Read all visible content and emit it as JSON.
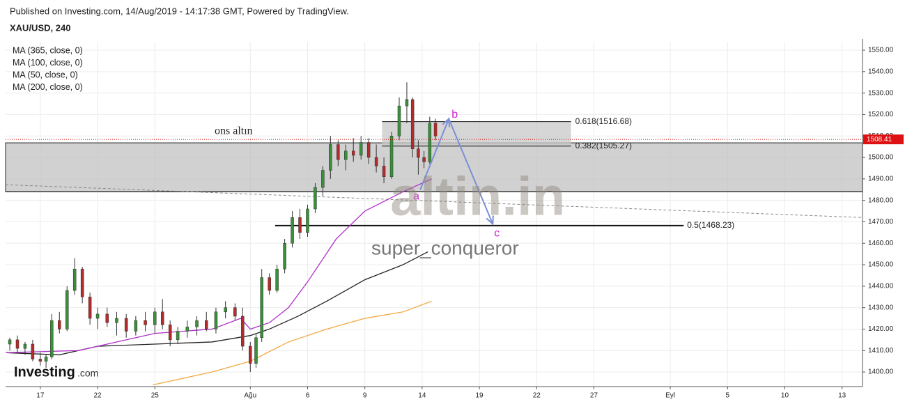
{
  "chart_data": {
    "type": "candlestick",
    "header": "Published on Investing.com, 14/Aug/2019 - 14:17:38 GMT, Powered by TradingView.",
    "title": "XAU/USD, 240",
    "brand": [
      "Investing",
      ".com"
    ],
    "annotations": [
      "ons altın",
      "altin.in",
      "super_conqueror"
    ],
    "ylim": [
      1393.2,
      1553.9
    ],
    "yticks": [
      {
        "value": 1400,
        "label": "1400.00"
      },
      {
        "value": 1410,
        "label": "1410.00"
      },
      {
        "value": 1420,
        "label": "1420.00"
      },
      {
        "value": 1430,
        "label": "1430.00"
      },
      {
        "value": 1440,
        "label": "1440.00"
      },
      {
        "value": 1450,
        "label": "1450.00"
      },
      {
        "value": 1460,
        "label": "1460.00"
      },
      {
        "value": 1470,
        "label": "1470.00"
      },
      {
        "value": 1480,
        "label": "1480.00"
      },
      {
        "value": 1490,
        "label": "1490.00"
      },
      {
        "value": 1500,
        "label": "1500.00"
      },
      {
        "value": 1510,
        "label": "1510.00"
      },
      {
        "value": 1520,
        "label": "1520.00"
      },
      {
        "value": 1530,
        "label": "1530.00"
      },
      {
        "value": 1540,
        "label": "1540.00"
      },
      {
        "value": 1550,
        "label": "1550.00"
      }
    ],
    "xlim": [
      -1.82,
      43.07
    ],
    "xticks": [
      {
        "value": 0,
        "label": "17"
      },
      {
        "value": 3,
        "label": "22"
      },
      {
        "value": 6,
        "label": "25"
      },
      {
        "value": 11,
        "label": "Ağu"
      },
      {
        "value": 14,
        "label": "6"
      },
      {
        "value": 17,
        "label": "9"
      },
      {
        "value": 20,
        "label": "14"
      },
      {
        "value": 23,
        "label": "19"
      },
      {
        "value": 26,
        "label": "22"
      },
      {
        "value": 29,
        "label": "27"
      },
      {
        "value": 33,
        "label": "Eyl"
      },
      {
        "value": 36,
        "label": "5"
      },
      {
        "value": 39,
        "label": "10"
      },
      {
        "value": 42,
        "label": "13"
      }
    ],
    "grid": true,
    "up_color": "#3a8f3a",
    "down_color": "#b52a2a",
    "candles": {
      "x": [
        -1.6,
        -1.2,
        -0.8,
        -0.4,
        0.0,
        0.3,
        0.6,
        1.0,
        1.4,
        1.8,
        2.2,
        2.6,
        3.0,
        3.5,
        4.0,
        4.5,
        5.0,
        5.5,
        6.0,
        6.4,
        6.8,
        7.2,
        7.7,
        8.2,
        8.7,
        9.2,
        9.7,
        10.2,
        10.6,
        11.0,
        11.3,
        11.6,
        12.0,
        12.4,
        12.8,
        13.2,
        13.6,
        14.0,
        14.4,
        14.8,
        15.2,
        15.6,
        16.0,
        16.4,
        16.8,
        17.2,
        17.6,
        18.0,
        18.4,
        18.8,
        19.2,
        19.5,
        19.8,
        20.1,
        20.4,
        20.7
      ],
      "open": [
        1413,
        1415,
        1411,
        1413,
        1406,
        1405,
        1407,
        1424,
        1420,
        1438,
        1448,
        1435,
        1425,
        1427,
        1423,
        1425,
        1419,
        1424,
        1422,
        1428,
        1422,
        1415,
        1419,
        1421,
        1424,
        1420,
        1428,
        1430,
        1426,
        1412,
        1404,
        1416,
        1444,
        1438,
        1448,
        1460,
        1472,
        1465,
        1476,
        1486,
        1494,
        1506,
        1499,
        1503,
        1501,
        1507,
        1500,
        1496,
        1491,
        1510,
        1524,
        1527,
        1504,
        1500,
        1498,
        1516
      ],
      "high": [
        1416,
        1417,
        1414,
        1415,
        1409,
        1408,
        1427,
        1428,
        1440,
        1453,
        1449,
        1437,
        1430,
        1430,
        1428,
        1427,
        1426,
        1428,
        1430,
        1434,
        1424,
        1421,
        1424,
        1426,
        1428,
        1430,
        1433,
        1432,
        1430,
        1414,
        1418,
        1448,
        1446,
        1450,
        1462,
        1475,
        1476,
        1478,
        1488,
        1496,
        1510,
        1508,
        1506,
        1509,
        1510,
        1509,
        1506,
        1500,
        1512,
        1528,
        1535,
        1528,
        1508,
        1503,
        1519,
        1518
      ],
      "low": [
        1410,
        1409,
        1408,
        1405,
        1403,
        1402,
        1406,
        1418,
        1419,
        1436,
        1432,
        1422,
        1420,
        1421,
        1417,
        1416,
        1417,
        1419,
        1418,
        1420,
        1412,
        1413,
        1416,
        1417,
        1419,
        1418,
        1425,
        1424,
        1410,
        1400,
        1402,
        1414,
        1436,
        1437,
        1446,
        1458,
        1462,
        1463,
        1474,
        1482,
        1490,
        1496,
        1494,
        1498,
        1499,
        1497,
        1493,
        1488,
        1490,
        1508,
        1516,
        1500,
        1492,
        1495,
        1497,
        1508
      ],
      "close": [
        1415,
        1411,
        1413,
        1406,
        1405,
        1407,
        1424,
        1420,
        1438,
        1448,
        1435,
        1425,
        1427,
        1423,
        1425,
        1419,
        1424,
        1422,
        1428,
        1422,
        1415,
        1419,
        1421,
        1424,
        1420,
        1428,
        1430,
        1426,
        1412,
        1404,
        1416,
        1444,
        1438,
        1448,
        1460,
        1472,
        1465,
        1476,
        1486,
        1494,
        1506,
        1499,
        1503,
        1501,
        1507,
        1500,
        1496,
        1491,
        1510,
        1524,
        1527,
        1504,
        1500,
        1498,
        1516,
        1510
      ]
    },
    "series": [
      {
        "name": "MA (365, close, 0)",
        "color": "#2a7fd4",
        "x": [],
        "values": []
      },
      {
        "name": "MA (100, close, 0)",
        "color": "#222222",
        "x": [
          -1.8,
          1,
          3,
          6,
          9,
          11,
          12,
          13.5,
          15,
          17,
          19,
          20.3
        ],
        "values": [
          1409,
          1408,
          1412,
          1413,
          1414,
          1417,
          1420,
          1426,
          1433,
          1443,
          1450,
          1456
        ]
      },
      {
        "name": "MA (50, close, 0)",
        "color": "#b030c8",
        "x": [
          -1.8,
          2,
          6,
          9,
          10.5,
          11,
          12,
          13,
          14,
          15.5,
          17,
          19,
          20.5
        ],
        "values": [
          1409,
          1410,
          1418,
          1420,
          1425,
          1420,
          1423,
          1430,
          1442,
          1462,
          1475,
          1484,
          1490
        ]
      },
      {
        "name": "MA (200, close, 0)",
        "color": "#f5a742",
        "x": [
          5.9,
          9,
          11,
          13,
          15,
          17,
          19,
          20.5
        ],
        "values": [
          1394,
          1400,
          1405,
          1414,
          1420,
          1425,
          1428,
          1433
        ]
      }
    ],
    "zone": [
      1484,
      1506.8
    ],
    "level_line": 1484,
    "trendline": {
      "x": [
        -1.82,
        43.07
      ],
      "values": [
        1487.3,
        1472
      ]
    },
    "fib": {
      "x": [
        17.9,
        27.8
      ],
      "levels": [
        {
          "value": 1516.68,
          "label": "0.618(1516.68)"
        },
        {
          "value": 1505.27,
          "label": "0.382(1505.27)"
        },
        {
          "value": 1468.23,
          "label": "0.5(1468.23)"
        }
      ]
    },
    "waves": [
      {
        "label": "a",
        "x": 19.9,
        "value": 1485
      },
      {
        "label": "b",
        "x": 21.4,
        "value": 1518
      },
      {
        "label": "c",
        "x": 23.7,
        "value": 1469
      }
    ],
    "last_price": {
      "value": 1508.41,
      "label": "1508.41"
    }
  }
}
